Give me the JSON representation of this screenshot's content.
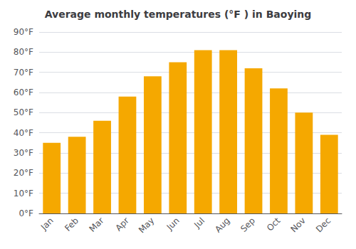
{
  "chart_data": {
    "type": "bar",
    "title": "Average monthly temperatures (°F ) in Baoying",
    "categories": [
      "Jan",
      "Feb",
      "Mar",
      "Apr",
      "May",
      "Jun",
      "Jul",
      "Aug",
      "Sep",
      "Oct",
      "Nov",
      "Dec"
    ],
    "values": [
      35,
      38,
      46,
      58,
      68,
      75,
      81,
      81,
      72,
      62,
      50,
      39
    ],
    "color": "#F5A800",
    "ylim": [
      0,
      90
    ],
    "yticks": [
      {
        "value": 0,
        "label": "0°F"
      },
      {
        "value": 10,
        "label": "10°F"
      },
      {
        "value": 20,
        "label": "20°F"
      },
      {
        "value": 30,
        "label": "30°F"
      },
      {
        "value": 40,
        "label": "40°F"
      },
      {
        "value": 50,
        "label": "50°F"
      },
      {
        "value": 60,
        "label": "60°F"
      },
      {
        "value": 70,
        "label": "70°F"
      },
      {
        "value": 80,
        "label": "80°F"
      },
      {
        "value": 90,
        "label": "90°F"
      }
    ],
    "grid": true
  }
}
